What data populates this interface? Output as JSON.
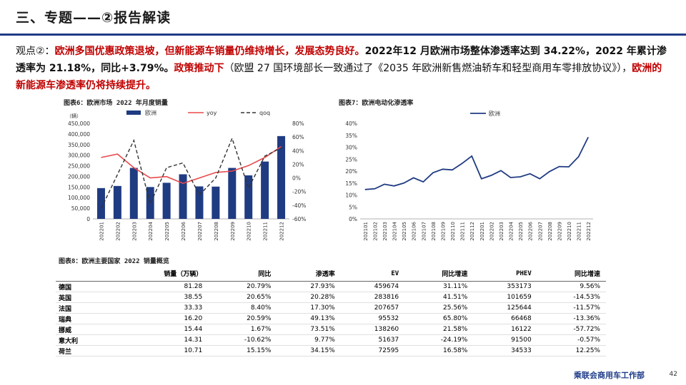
{
  "header": {
    "title": "三、专题——②报告解读"
  },
  "summary": {
    "prefix": "观点②：",
    "red1": "欧洲多国优惠政策退坡，但新能源车销量仍维持增长，发展态势良好。",
    "black1": "2022年12 月欧洲市场整体渗透率达到 34.22%，2022 年累计渗透率为 21.18%，同比+3.79%。",
    "red2": "政策推动下",
    "plain1": "（欧盟 27 国环境部长一致通过了《2035 年欧洲新售燃油轿车和轻型商用车零排放协议》），",
    "red3": "欧洲的新能源车渗透率仍将持续提升。"
  },
  "footer": {
    "brand": "乘联会商用车工作部",
    "page": "42"
  },
  "colors": {
    "bar": "#1f3b82",
    "yoy": "#e8494c",
    "qoq": "#333333",
    "line": "#1f3b82",
    "header_rule": "#1f3c88"
  },
  "chart_data": [
    {
      "type": "bar",
      "title": "图表6：欧洲市场 2022 年月度销量",
      "unit_label": "（辆）",
      "categories": [
        "202201",
        "202202",
        "202203",
        "202204",
        "202205",
        "202206",
        "202207",
        "202208",
        "202209",
        "202210",
        "202211",
        "202212"
      ],
      "series": [
        {
          "name": "欧洲",
          "type": "bar",
          "axis": "left",
          "values": [
            145000,
            155000,
            240000,
            150000,
            170000,
            210000,
            153000,
            152000,
            240000,
            205000,
            270000,
            390000
          ]
        },
        {
          "name": "yoy",
          "type": "line",
          "axis": "right",
          "values": [
            30,
            35,
            15,
            0,
            2,
            -8,
            0,
            8,
            10,
            18,
            30,
            46
          ]
        },
        {
          "name": "qoq",
          "type": "line",
          "dashed": true,
          "axis": "right",
          "values": [
            -45,
            5,
            55,
            -38,
            15,
            22,
            -25,
            0,
            58,
            -15,
            32,
            44
          ]
        }
      ],
      "ylim": [
        0,
        450000
      ],
      "y_ticks": [
        "0",
        "50,000",
        "100,000",
        "150,000",
        "200,000",
        "250,000",
        "300,000",
        "350,000",
        "400,000",
        "450,000"
      ],
      "y2lim": [
        -60,
        80
      ],
      "y2_ticks": [
        "-60%",
        "-40%",
        "-20%",
        "0%",
        "20%",
        "40%",
        "60%",
        "80%"
      ],
      "legend": "top",
      "grid": false
    },
    {
      "type": "line",
      "title": "图表7：欧洲电动化渗透率",
      "categories": [
        "202101",
        "202102",
        "202103",
        "202104",
        "202105",
        "202106",
        "202107",
        "202108",
        "202109",
        "202110",
        "202111",
        "202112",
        "202201",
        "202202",
        "202203",
        "202204",
        "202205",
        "202206",
        "202207",
        "202208",
        "202209",
        "202210",
        "202211",
        "202212"
      ],
      "series": [
        {
          "name": "欧洲",
          "values": [
            12.3,
            12.6,
            14.5,
            13.8,
            15.0,
            17.2,
            15.5,
            19.3,
            20.8,
            20.5,
            23.2,
            26.3,
            16.8,
            18.2,
            20.2,
            17.3,
            17.6,
            18.9,
            16.8,
            19.8,
            21.9,
            21.8,
            26.0,
            34.2
          ]
        }
      ],
      "ylim": [
        0,
        40
      ],
      "y_ticks": [
        "0%",
        "5%",
        "10%",
        "15%",
        "20%",
        "25%",
        "30%",
        "35%",
        "40%"
      ],
      "legend": "top",
      "grid": false
    },
    {
      "type": "table",
      "title": "图表8：欧洲主要国家 2022 销量概览",
      "columns": [
        "",
        "销量（万辆）",
        "同比",
        "渗透率",
        "EV",
        "同比增速",
        "PHEV",
        "同比增速"
      ],
      "rows": [
        [
          "德国",
          "81.28",
          "20.79%",
          "27.93%",
          "459674",
          "31.11%",
          "353173",
          "9.56%"
        ],
        [
          "英国",
          "38.55",
          "20.65%",
          "20.28%",
          "283816",
          "41.51%",
          "101659",
          "-14.53%"
        ],
        [
          "法国",
          "33.33",
          "8.40%",
          "17.30%",
          "207657",
          "25.56%",
          "125644",
          "-11.57%"
        ],
        [
          "瑞典",
          "16.20",
          "20.59%",
          "49.13%",
          "95532",
          "65.80%",
          "66468",
          "-13.36%"
        ],
        [
          "挪威",
          "15.44",
          "1.67%",
          "73.51%",
          "138260",
          "21.58%",
          "16122",
          "-57.72%"
        ],
        [
          "意大利",
          "14.31",
          "-10.62%",
          "9.77%",
          "51637",
          "-24.19%",
          "91500",
          "-0.57%"
        ],
        [
          "荷兰",
          "10.71",
          "15.15%",
          "34.15%",
          "72595",
          "16.58%",
          "34533",
          "12.25%"
        ]
      ]
    }
  ]
}
